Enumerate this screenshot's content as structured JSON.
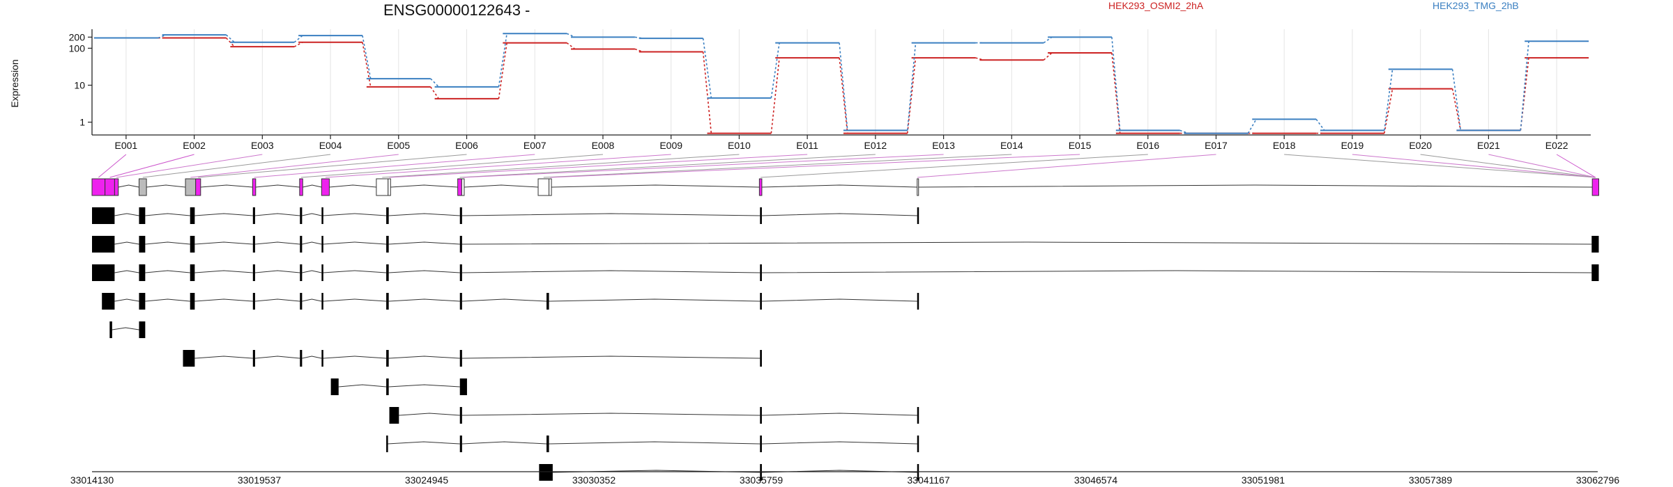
{
  "chart_data": {
    "type": "line",
    "title": "ENSG00000122643 -",
    "ylabel": "Expression",
    "yscale": "log",
    "ylim": [
      0.45,
      300
    ],
    "yticks": [
      1,
      10,
      100,
      200
    ],
    "ytick_labels": [
      "1",
      "10",
      "100",
      "200"
    ],
    "grid": "vertical",
    "legend_placement": "top",
    "categories": [
      "E001",
      "E002",
      "E003",
      "E004",
      "E005",
      "E006",
      "E007",
      "E008",
      "E009",
      "E010",
      "E011",
      "E012",
      "E013",
      "E014",
      "E015",
      "E016",
      "E017",
      "E018",
      "E019",
      "E020",
      "E021",
      "E022"
    ],
    "series": [
      {
        "name": "HEK293_OSMI2_2hA",
        "color": "#cc2222",
        "values": [
          190,
          190,
          110,
          145,
          9,
          4.3,
          140,
          95,
          80,
          0.5,
          55,
          0.5,
          55,
          48,
          75,
          0.5,
          0.5,
          0.5,
          0.5,
          8,
          0.6,
          55
        ]
      },
      {
        "name": "HEK293_TMG_2hB",
        "color": "#3a7fc1",
        "values": [
          190,
          230,
          145,
          220,
          15,
          9,
          250,
          200,
          185,
          4.5,
          140,
          0.6,
          140,
          140,
          200,
          0.6,
          0.5,
          1.2,
          0.6,
          27,
          0.6,
          155
        ]
      }
    ],
    "genome_axis": {
      "start": 33014130,
      "end": 33062796,
      "tick_labels": [
        "33014130",
        "33019537",
        "33024945",
        "33030352",
        "33035759",
        "33041167",
        "33046574",
        "33051981",
        "33057389",
        "33062796"
      ]
    },
    "exon_model": {
      "color": "#ee22ee",
      "exons": [
        {
          "s": 33014130,
          "e": 33014550,
          "fill": "magenta"
        },
        {
          "s": 33014550,
          "e": 33014860,
          "fill": "magenta"
        },
        {
          "s": 33014860,
          "e": 33014980,
          "fill": "magenta"
        },
        {
          "s": 33015650,
          "e": 33015890,
          "fill": "gray"
        },
        {
          "s": 33017150,
          "e": 33017480,
          "fill": "gray"
        },
        {
          "s": 33017480,
          "e": 33017640,
          "fill": "magenta"
        },
        {
          "s": 33019320,
          "e": 33019420,
          "fill": "magenta"
        },
        {
          "s": 33020840,
          "e": 33020940,
          "fill": "magenta"
        },
        {
          "s": 33021550,
          "e": 33021800,
          "fill": "magenta"
        },
        {
          "s": 33023320,
          "e": 33023700,
          "fill": "white"
        },
        {
          "s": 33023700,
          "e": 33023780,
          "fill": "white"
        },
        {
          "s": 33025950,
          "e": 33026080,
          "fill": "magenta"
        },
        {
          "s": 33026080,
          "e": 33026160,
          "fill": "white"
        },
        {
          "s": 33028550,
          "e": 33028900,
          "fill": "white"
        },
        {
          "s": 33028900,
          "e": 33028980,
          "fill": "white"
        },
        {
          "s": 33035700,
          "e": 33035780,
          "fill": "magenta"
        },
        {
          "s": 33040800,
          "e": 33040820,
          "fill": "white"
        },
        {
          "s": 33062620,
          "e": 33062830,
          "fill": "magenta"
        }
      ]
    },
    "transcripts": [
      [
        [
          33014130,
          33014860
        ],
        [
          33015650,
          33015850
        ],
        [
          33017300,
          33017450
        ],
        [
          33019330,
          33019400
        ],
        [
          33020850,
          33020920
        ],
        [
          33021550,
          33021600
        ],
        [
          33023640,
          33023720
        ],
        [
          33026020,
          33026090
        ],
        [
          33035720,
          33035780
        ],
        [
          33040800,
          33040820
        ]
      ],
      [
        [
          33014130,
          33014860
        ],
        [
          33015650,
          33015850
        ],
        [
          33017300,
          33017450
        ],
        [
          33019330,
          33019400
        ],
        [
          33020850,
          33020920
        ],
        [
          33021550,
          33021600
        ],
        [
          33023640,
          33023720
        ],
        [
          33026020,
          33026090
        ],
        [
          33062600,
          33062830
        ]
      ],
      [
        [
          33014130,
          33014860
        ],
        [
          33015650,
          33015850
        ],
        [
          33017300,
          33017450
        ],
        [
          33019330,
          33019400
        ],
        [
          33020850,
          33020920
        ],
        [
          33021550,
          33021600
        ],
        [
          33023640,
          33023720
        ],
        [
          33026020,
          33026090
        ],
        [
          33035720,
          33035780
        ],
        [
          33062600,
          33062830
        ]
      ],
      [
        [
          33014450,
          33014860
        ],
        [
          33015650,
          33015850
        ],
        [
          33017300,
          33017450
        ],
        [
          33019330,
          33019400
        ],
        [
          33020850,
          33020920
        ],
        [
          33021550,
          33021600
        ],
        [
          33023640,
          33023720
        ],
        [
          33026020,
          33026090
        ],
        [
          33028820,
          33028900
        ],
        [
          33035720,
          33035780
        ],
        [
          33040800,
          33040820
        ]
      ],
      [
        [
          33014700,
          33014780
        ],
        [
          33015650,
          33015850
        ]
      ],
      [
        [
          33017070,
          33017450
        ],
        [
          33019330,
          33019400
        ],
        [
          33020850,
          33020920
        ],
        [
          33021550,
          33021600
        ],
        [
          33023640,
          33023720
        ],
        [
          33026020,
          33026090
        ],
        [
          33035720,
          33035780
        ]
      ],
      [
        [
          33021850,
          33022100
        ],
        [
          33023640,
          33023720
        ],
        [
          33026020,
          33026250
        ]
      ],
      [
        [
          33023740,
          33024050
        ],
        [
          33026020,
          33026090
        ],
        [
          33035720,
          33035780
        ],
        [
          33040800,
          33040820
        ]
      ],
      [
        [
          33023640,
          33023680
        ],
        [
          33026020,
          33026090
        ],
        [
          33028820,
          33028900
        ],
        [
          33035720,
          33035780
        ],
        [
          33040800,
          33040820
        ]
      ],
      [
        [
          33028580,
          33029020
        ],
        [
          33035720,
          33035780
        ],
        [
          33040800,
          33040820
        ]
      ]
    ]
  }
}
